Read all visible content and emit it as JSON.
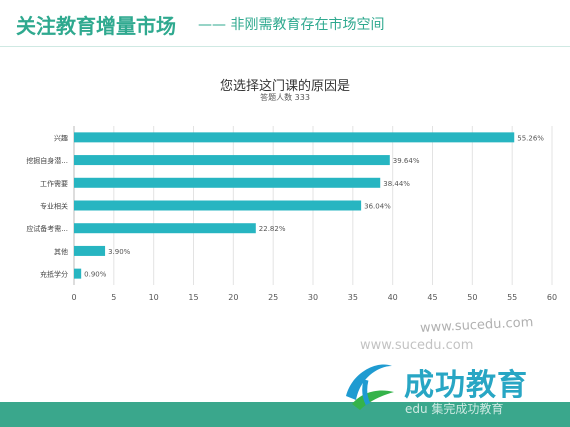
{
  "header": {
    "title": "关注教育增量市场",
    "subtitle": "—— 非刚需教育存在市场空间"
  },
  "chart_data": {
    "type": "bar",
    "orientation": "horizontal",
    "title": "您选择这门课的原因是",
    "subtitle": "答题人数 333",
    "categories": [
      "兴趣",
      "挖掘自身潜...",
      "工作需要",
      "专业相关",
      "应试备考需...",
      "其他",
      "充抵学分"
    ],
    "values": [
      55.26,
      39.64,
      38.44,
      36.04,
      22.82,
      3.9,
      0.9
    ],
    "value_labels": [
      "55.26%",
      "39.64%",
      "38.44%",
      "36.04%",
      "22.82%",
      "3.90%",
      "0.90%"
    ],
    "xlim": [
      0,
      60
    ],
    "xticks": [
      0,
      5,
      10,
      15,
      20,
      25,
      30,
      35,
      40,
      45,
      50,
      55,
      60
    ],
    "grid": true,
    "bar_color": "#27b5c1"
  },
  "branding": {
    "logo": "success-education-logo",
    "name": "成功教育",
    "watermark_url": "www.sucedu.com",
    "watermark_url2": "www.sucedu.com",
    "watermark_text": "edu 集完成功教育"
  },
  "colors": {
    "accent": "#2fa98f",
    "bar": "#27b5c1",
    "footer": "#3aa78c",
    "brand": "#28a6c4"
  }
}
